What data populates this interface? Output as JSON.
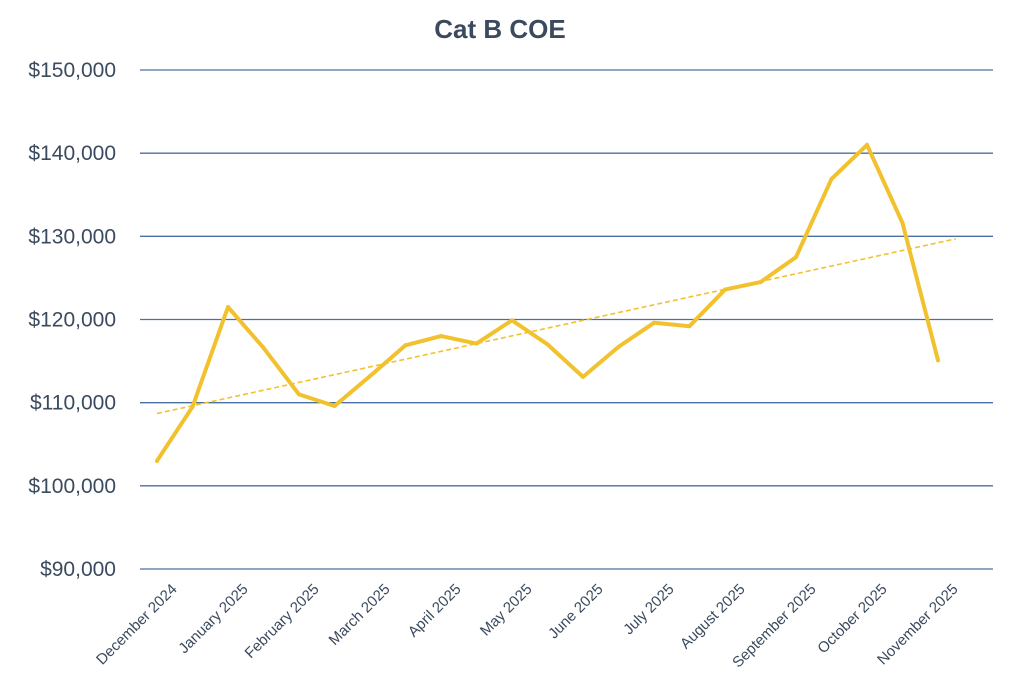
{
  "chart_data": {
    "type": "line",
    "title": "Cat B COE",
    "xlabel": "",
    "ylabel": "",
    "ylim": [
      90000,
      150000
    ],
    "yticks": [
      90000,
      100000,
      110000,
      120000,
      130000,
      140000,
      150000
    ],
    "ytick_labels": [
      "$90,000",
      "$100,000",
      "$110,000",
      "$120,000",
      "$130,000",
      "$140,000",
      "$150,000"
    ],
    "month_labels": [
      "December 2024",
      "January 2025",
      "February 2025",
      "March 2025",
      "April 2025",
      "May 2025",
      "June 2025",
      "July 2025",
      "August 2025",
      "September 2025",
      "October 2025",
      "November 2025"
    ],
    "label_positions": [
      0.5,
      2.5,
      4.5,
      6.5,
      8.5,
      10.5,
      12.5,
      14.5,
      16.5,
      18.5,
      20.5,
      22.5
    ],
    "x": [
      0,
      1,
      2,
      3,
      4,
      5,
      6,
      7,
      8,
      9,
      10,
      11,
      12,
      13,
      14,
      15,
      16,
      17,
      18,
      19,
      20,
      21,
      22,
      23
    ],
    "series": [
      {
        "name": "Cat B COE",
        "values": [
          103000,
          109500,
          121500,
          116600,
          111000,
          109600,
          113200,
          116900,
          118000,
          117100,
          119900,
          117000,
          113100,
          116700,
          119600,
          119200,
          123600,
          124500,
          127500,
          136900,
          141000,
          131600,
          115100,
          null
        ]
      }
    ],
    "trendline": {
      "name": "Linear trend",
      "start": 108700,
      "end": 129700,
      "from_index": 0,
      "to_index": 22.5
    },
    "line_color": "#f2c12e",
    "grid_color": "#4a6fa1",
    "text_color": "#3b4a5e",
    "grid": true
  }
}
